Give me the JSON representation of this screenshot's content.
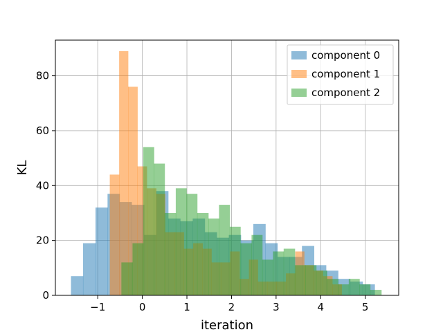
{
  "chart_data": {
    "type": "histogram",
    "title": "",
    "xlabel": "iteration",
    "ylabel": "KL",
    "xlim": [
      -1.95,
      5.75
    ],
    "ylim": [
      0,
      93
    ],
    "xticks": [
      -1,
      0,
      1,
      2,
      3,
      4,
      5
    ],
    "xtick_labels": [
      "−1",
      "0",
      "1",
      "2",
      "3",
      "4",
      "5"
    ],
    "yticks": [
      0,
      20,
      40,
      60,
      80
    ],
    "ytick_labels": [
      "0",
      "20",
      "40",
      "60",
      "80"
    ],
    "grid": true,
    "legend_position": "top-right",
    "series": [
      {
        "name": "component 0",
        "color": "#1f77b4",
        "alpha": 0.5,
        "bins": [
          [
            -1.6,
            -1.33,
            7
          ],
          [
            -1.33,
            -1.05,
            19
          ],
          [
            -1.05,
            -0.78,
            32
          ],
          [
            -0.78,
            -0.51,
            37
          ],
          [
            -0.51,
            -0.24,
            34
          ],
          [
            -0.24,
            0.04,
            33
          ],
          [
            0.04,
            0.31,
            22
          ],
          [
            0.31,
            0.58,
            38
          ],
          [
            0.58,
            0.85,
            28
          ],
          [
            0.85,
            1.13,
            27
          ],
          [
            1.13,
            1.4,
            28
          ],
          [
            1.4,
            1.67,
            23
          ],
          [
            1.67,
            1.94,
            21
          ],
          [
            1.94,
            2.21,
            22
          ],
          [
            2.21,
            2.49,
            20
          ],
          [
            2.49,
            2.76,
            26
          ],
          [
            2.76,
            3.03,
            19
          ],
          [
            3.03,
            3.3,
            14
          ],
          [
            3.3,
            3.58,
            14
          ],
          [
            3.58,
            3.85,
            18
          ],
          [
            3.85,
            4.12,
            11
          ],
          [
            4.12,
            4.39,
            9
          ],
          [
            4.39,
            4.66,
            6
          ],
          [
            4.66,
            4.94,
            5
          ],
          [
            4.94,
            5.21,
            4
          ]
        ]
      },
      {
        "name": "component 1",
        "color": "#ff7f0e",
        "alpha": 0.5,
        "bins": [
          [
            -0.73,
            -0.52,
            44
          ],
          [
            -0.52,
            -0.32,
            89
          ],
          [
            -0.32,
            -0.11,
            76
          ],
          [
            -0.11,
            0.1,
            47
          ],
          [
            0.1,
            0.31,
            39
          ],
          [
            0.31,
            0.51,
            37
          ],
          [
            0.51,
            0.72,
            23
          ],
          [
            0.72,
            0.93,
            23
          ],
          [
            0.93,
            1.14,
            17
          ],
          [
            1.14,
            1.35,
            19
          ],
          [
            1.35,
            1.55,
            17
          ],
          [
            1.55,
            1.76,
            12
          ],
          [
            1.76,
            1.97,
            12
          ],
          [
            1.97,
            2.18,
            16
          ],
          [
            2.18,
            2.39,
            6
          ],
          [
            2.39,
            2.59,
            13
          ],
          [
            2.59,
            2.8,
            5
          ],
          [
            2.8,
            3.01,
            5
          ],
          [
            3.01,
            3.22,
            5
          ],
          [
            3.22,
            3.43,
            8
          ],
          [
            3.43,
            3.63,
            16
          ],
          [
            3.63,
            3.84,
            11
          ],
          [
            3.84,
            4.05,
            9
          ],
          [
            4.05,
            4.26,
            7
          ],
          [
            4.26,
            4.47,
            4
          ]
        ]
      },
      {
        "name": "component 2",
        "color": "#2ca02c",
        "alpha": 0.5,
        "bins": [
          [
            -0.47,
            -0.22,
            12
          ],
          [
            -0.22,
            0.02,
            19
          ],
          [
            0.02,
            0.26,
            54
          ],
          [
            0.26,
            0.5,
            48
          ],
          [
            0.5,
            0.75,
            30
          ],
          [
            0.75,
            0.99,
            39
          ],
          [
            0.99,
            1.23,
            37
          ],
          [
            1.23,
            1.48,
            30
          ],
          [
            1.48,
            1.72,
            28
          ],
          [
            1.72,
            1.96,
            33
          ],
          [
            1.96,
            2.2,
            25
          ],
          [
            2.2,
            2.45,
            19
          ],
          [
            2.45,
            2.69,
            22
          ],
          [
            2.69,
            2.93,
            13
          ],
          [
            2.93,
            3.17,
            16
          ],
          [
            3.17,
            3.42,
            17
          ],
          [
            3.42,
            3.66,
            11
          ],
          [
            3.66,
            3.9,
            11
          ],
          [
            3.9,
            4.14,
            9
          ],
          [
            4.14,
            4.39,
            6
          ],
          [
            4.39,
            4.63,
            4
          ],
          [
            4.63,
            4.87,
            6
          ],
          [
            4.87,
            5.11,
            4
          ],
          [
            5.11,
            5.36,
            2
          ]
        ]
      }
    ]
  }
}
